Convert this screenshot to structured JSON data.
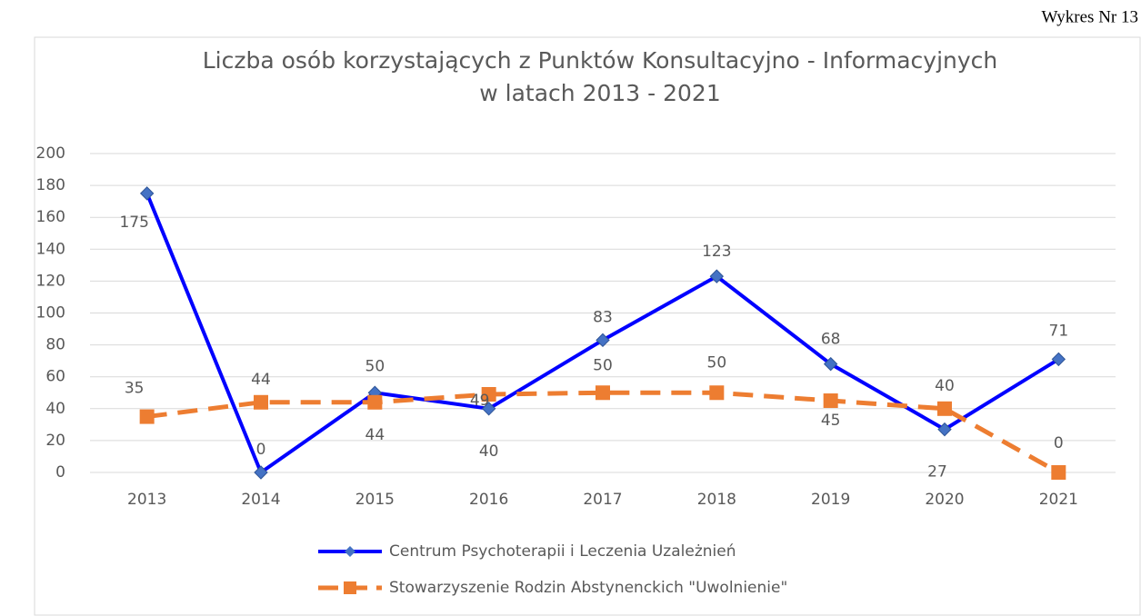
{
  "caption": "Wykres Nr 13",
  "chart_data": {
    "type": "line",
    "title": [
      "Liczba osób korzystających z Punktów Konsultacyjno - Informacyjnych",
      "w latach 2013 - 2021"
    ],
    "categories": [
      "2013",
      "2014",
      "2015",
      "2016",
      "2017",
      "2018",
      "2019",
      "2020",
      "2021"
    ],
    "series": [
      {
        "name": "Centrum Psychoterapii i Leczenia Uzależnień",
        "color": "#0000ff",
        "marker_color": "#4472c4",
        "marker": "diamond",
        "dash": false,
        "values": [
          175,
          0,
          50,
          40,
          83,
          123,
          68,
          27,
          71
        ]
      },
      {
        "name": "Stowarzyszenie Rodzin Abstynenckich \"Uwolnienie\"",
        "color": "#ed7d31",
        "marker_color": "#ed7d31",
        "marker": "square",
        "dash": true,
        "values": [
          35,
          44,
          44,
          49,
          50,
          50,
          45,
          40,
          0
        ]
      }
    ],
    "ylim": [
      0,
      200
    ],
    "yticks": [
      0,
      20,
      40,
      60,
      80,
      100,
      120,
      140,
      160,
      180,
      200
    ],
    "grid": true,
    "legend": "bottom"
  }
}
